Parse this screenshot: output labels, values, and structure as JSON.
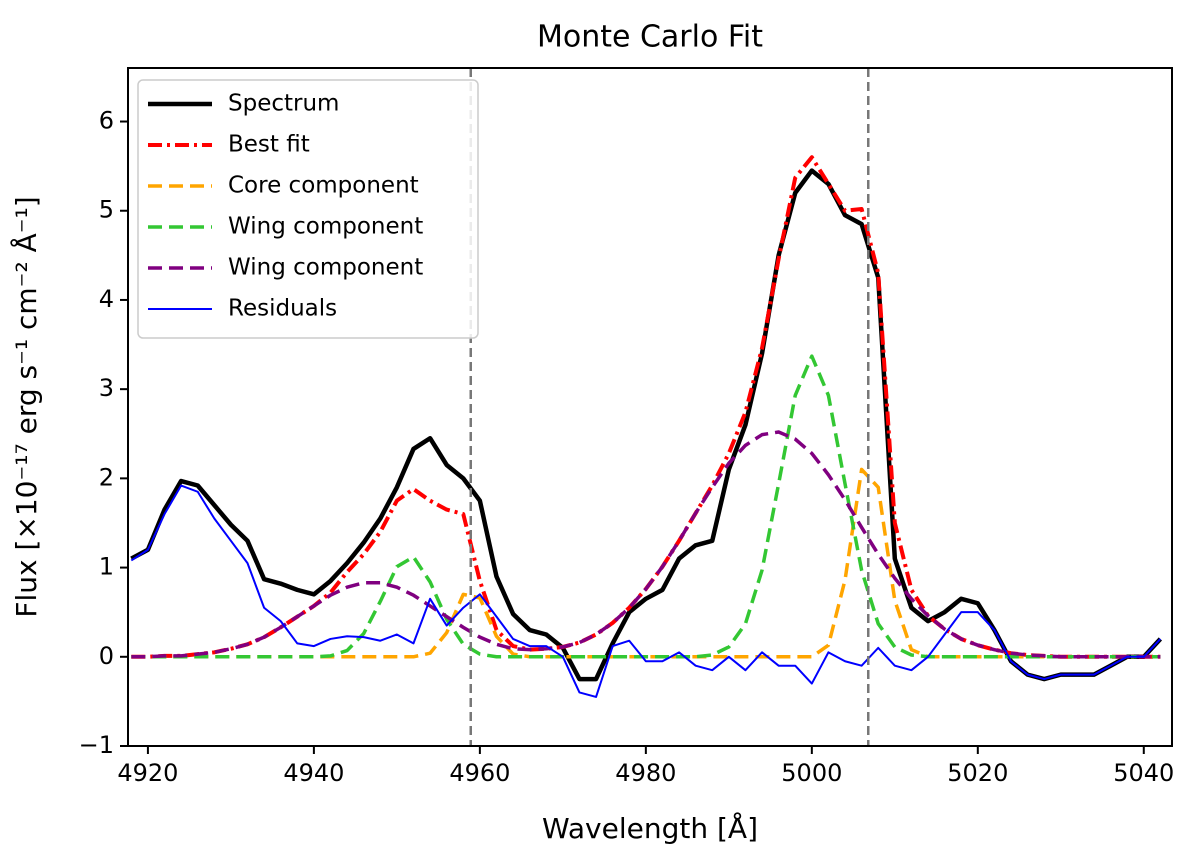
{
  "chart_data": {
    "type": "line",
    "title": "Monte Carlo Fit",
    "xlabel": "Wavelength [Å]",
    "ylabel": "Flux [×10⁻¹⁷ erg s⁻¹ cm⁻² Å⁻¹]",
    "xlim": [
      4917.6,
      5043.4
    ],
    "ylim": [
      -1,
      6.6
    ],
    "xticks": [
      4920,
      4940,
      4960,
      4980,
      5000,
      5020,
      5040
    ],
    "yticks": [
      {
        "value": -1,
        "label": "−1"
      },
      0,
      1,
      2,
      3,
      4,
      5,
      6
    ],
    "legend": "upper left",
    "vlines": [
      4958.9,
      5006.8
    ],
    "vline_color": "#777777",
    "x": [
      4918,
      4920,
      4922,
      4924,
      4926,
      4928,
      4930,
      4932,
      4934,
      4936,
      4938,
      4940,
      4942,
      4944,
      4946,
      4948,
      4950,
      4952,
      4954,
      4956,
      4958,
      4960,
      4962,
      4964,
      4966,
      4968,
      4970,
      4972,
      4974,
      4976,
      4978,
      4980,
      4982,
      4984,
      4986,
      4988,
      4990,
      4992,
      4994,
      4996,
      4998,
      5000,
      5002,
      5004,
      5006,
      5008,
      5010,
      5012,
      5014,
      5016,
      5018,
      5020,
      5022,
      5024,
      5026,
      5028,
      5030,
      5032,
      5034,
      5036,
      5038,
      5040,
      5042
    ],
    "series": [
      {
        "name": "Spectrum",
        "color": "#000000",
        "linestyle": "solid",
        "linewidth": 4.5,
        "values": [
          1.1,
          1.2,
          1.65,
          1.97,
          1.92,
          1.7,
          1.48,
          1.3,
          0.87,
          0.82,
          0.75,
          0.7,
          0.85,
          1.05,
          1.28,
          1.55,
          1.9,
          2.33,
          2.45,
          2.15,
          2.0,
          1.75,
          0.9,
          0.48,
          0.3,
          0.25,
          0.1,
          -0.25,
          -0.25,
          0.15,
          0.5,
          0.65,
          0.75,
          1.1,
          1.25,
          1.3,
          2.1,
          2.6,
          3.4,
          4.5,
          5.2,
          5.45,
          5.3,
          4.95,
          4.85,
          4.25,
          1.1,
          0.55,
          0.4,
          0.5,
          0.65,
          0.6,
          0.3,
          -0.05,
          -0.2,
          -0.25,
          -0.2,
          -0.2,
          -0.2,
          -0.1,
          0.0,
          0.0,
          0.2
        ]
      },
      {
        "name": "Best fit",
        "color": "#ff0000",
        "linestyle": "dashdot",
        "linewidth": 4,
        "values": [
          0,
          0,
          0.01,
          0.01,
          0.03,
          0.05,
          0.09,
          0.14,
          0.22,
          0.33,
          0.45,
          0.57,
          0.72,
          0.95,
          1.15,
          1.4,
          1.75,
          1.88,
          1.75,
          1.65,
          1.6,
          0.85,
          0.3,
          0.12,
          0.08,
          0.09,
          0.11,
          0.16,
          0.25,
          0.38,
          0.55,
          0.76,
          1.01,
          1.3,
          1.61,
          1.92,
          2.28,
          2.74,
          3.46,
          4.46,
          5.37,
          5.6,
          5.3,
          5.0,
          5.02,
          4.3,
          1.5,
          0.75,
          0.46,
          0.31,
          0.2,
          0.13,
          0.08,
          0.04,
          0.02,
          0.01,
          0,
          0,
          0,
          0,
          0,
          0,
          0
        ]
      },
      {
        "name": "Core component",
        "color": "#ffa500",
        "linestyle": "dashed",
        "linewidth": 3.5,
        "values": [
          0,
          0,
          0,
          0,
          0,
          0,
          0,
          0,
          0,
          0,
          0,
          0,
          0,
          0,
          0,
          0,
          0,
          0,
          0.04,
          0.27,
          0.7,
          0.66,
          0.23,
          0.03,
          0,
          0,
          0,
          0,
          0,
          0,
          0,
          0,
          0,
          0,
          0,
          0,
          0,
          0,
          0,
          0,
          0,
          0,
          0.13,
          0.86,
          2.1,
          1.9,
          0.63,
          0.08,
          0,
          0,
          0,
          0,
          0,
          0,
          0,
          0,
          0,
          0,
          0,
          0,
          0,
          0,
          0
        ]
      },
      {
        "name": "Wing component",
        "color": "#33c733",
        "linestyle": "dashed",
        "linewidth": 3.5,
        "values": [
          0,
          0,
          0,
          0,
          0,
          0,
          0,
          0,
          0,
          0,
          0,
          0,
          0.01,
          0.07,
          0.26,
          0.62,
          1.01,
          1.12,
          0.84,
          0.42,
          0.14,
          0.03,
          0,
          0,
          0,
          0,
          0,
          0,
          0,
          0,
          0,
          0,
          0,
          0,
          0,
          0.02,
          0.11,
          0.37,
          0.97,
          1.94,
          2.93,
          3.37,
          2.93,
          1.94,
          0.97,
          0.37,
          0.11,
          0.02,
          0,
          0,
          0,
          0,
          0,
          0,
          0,
          0,
          0,
          0,
          0,
          0,
          0,
          0,
          0
        ]
      },
      {
        "name": "Wing component",
        "color": "#800080",
        "linestyle": "dashed",
        "linewidth": 3.5,
        "values": [
          0,
          0,
          0.01,
          0.01,
          0.03,
          0.05,
          0.09,
          0.14,
          0.22,
          0.33,
          0.45,
          0.57,
          0.69,
          0.78,
          0.83,
          0.83,
          0.78,
          0.69,
          0.57,
          0.45,
          0.33,
          0.22,
          0.14,
          0.09,
          0.08,
          0.09,
          0.11,
          0.16,
          0.25,
          0.38,
          0.55,
          0.76,
          1.01,
          1.3,
          1.61,
          1.9,
          2.17,
          2.37,
          2.49,
          2.52,
          2.44,
          2.28,
          2.04,
          1.76,
          1.45,
          1.15,
          0.88,
          0.65,
          0.46,
          0.31,
          0.2,
          0.13,
          0.08,
          0.04,
          0.02,
          0.01,
          0,
          0,
          0,
          0,
          0,
          0,
          0
        ]
      },
      {
        "name": "Residuals",
        "color": "#0000ff",
        "linestyle": "solid",
        "linewidth": 2,
        "values": [
          1.08,
          1.2,
          1.6,
          1.92,
          1.85,
          1.55,
          1.3,
          1.05,
          0.55,
          0.4,
          0.15,
          0.12,
          0.2,
          0.23,
          0.22,
          0.18,
          0.25,
          0.15,
          0.65,
          0.35,
          0.55,
          0.7,
          0.45,
          0.2,
          0.12,
          0.12,
          0.0,
          -0.4,
          -0.45,
          0.12,
          0.18,
          -0.05,
          -0.05,
          0.05,
          -0.1,
          -0.15,
          0.0,
          -0.15,
          0.05,
          -0.1,
          -0.1,
          -0.3,
          0.05,
          -0.05,
          -0.1,
          0.1,
          -0.1,
          -0.15,
          0.0,
          0.25,
          0.5,
          0.5,
          0.3,
          -0.05,
          -0.2,
          -0.25,
          -0.2,
          -0.2,
          -0.2,
          -0.1,
          0.0,
          0.0,
          0.2
        ]
      }
    ]
  }
}
